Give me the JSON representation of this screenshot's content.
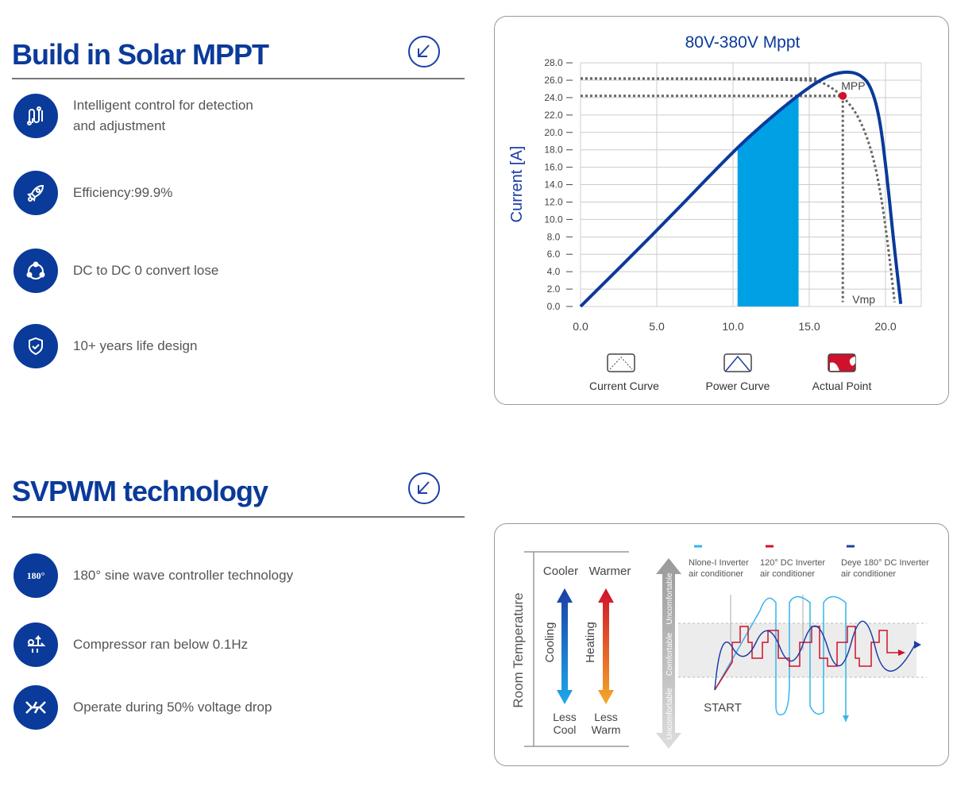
{
  "section1": {
    "title": "Build in Solar MPPT",
    "features": [
      {
        "icon": "circuit-icon",
        "line1": "Intelligent control for detection",
        "line2": "and adjustment"
      },
      {
        "icon": "rocket-icon",
        "line1": "Efficiency:99.9%"
      },
      {
        "icon": "cycle-icon",
        "line1": "DC to DC 0 convert lose"
      },
      {
        "icon": "shield-check-icon",
        "line1": "10+ years life design"
      }
    ]
  },
  "section2": {
    "title": "SVPWM technology",
    "features": [
      {
        "icon": "180-degree-icon",
        "icon_text": "180°",
        "line1": "180° sine wave controller technology"
      },
      {
        "icon": "compressor-icon",
        "line1": "Compressor ran below 0.1Hz"
      },
      {
        "icon": "voltage-drop-icon",
        "line1": "Operate during 50% voltage drop"
      }
    ]
  },
  "colors": {
    "brand": "#0a3a9a",
    "fill": "#00a0e4",
    "red": "#d0112b"
  },
  "chart_data": {
    "type": "line",
    "title": "80V-380V  Mppt",
    "ylabel": "Current [A]",
    "xlabel": "",
    "xlim": [
      0,
      22.3
    ],
    "ylim": [
      0,
      28
    ],
    "xticks": [
      "0.0",
      "5.0",
      "10.0",
      "15.0",
      "20.0"
    ],
    "yticks": [
      "0.0",
      "2.0",
      "4.0",
      "6.0",
      "8.0",
      "10.0",
      "12.0",
      "14.0",
      "16.0",
      "18.0",
      "20.0",
      "22.0",
      "24.0",
      "26.0",
      "28.0"
    ],
    "series": [
      {
        "name": "Power Curve",
        "style": "solid",
        "points": [
          [
            0,
            0
          ],
          [
            5,
            8.7
          ],
          [
            10,
            17.8
          ],
          [
            12,
            21
          ],
          [
            14,
            23.9
          ],
          [
            15.5,
            25.8
          ],
          [
            16.5,
            26.7
          ],
          [
            17.5,
            27
          ],
          [
            18.3,
            26.7
          ],
          [
            19,
            25.5
          ],
          [
            19.6,
            22
          ],
          [
            20.1,
            15
          ],
          [
            20.5,
            8
          ],
          [
            21,
            0.3
          ]
        ]
      },
      {
        "name": "Current Curve",
        "style": "dotted",
        "points": [
          [
            0,
            26.2
          ],
          [
            15,
            26.1
          ],
          [
            16,
            25.7
          ],
          [
            17.2,
            24.2
          ],
          [
            18.2,
            22
          ],
          [
            19,
            18.5
          ],
          [
            19.6,
            14
          ],
          [
            20.1,
            8
          ],
          [
            20.6,
            0.5
          ]
        ]
      }
    ],
    "shaded_x": [
      10.3,
      14.3
    ],
    "mpp": {
      "label": "MPP",
      "x": 17.2,
      "y": 24.2
    },
    "reference_lines": {
      "y": [
        26.2,
        24.2
      ],
      "vmp_label": "Vmp"
    },
    "legend": [
      "Current  Curve",
      "Power Curve",
      "Actual Point"
    ]
  },
  "comfort": {
    "axis_label": "Room Temperature",
    "cooler": "Cooler",
    "warmer": "Warmer",
    "cooling": "Cooling",
    "heating": "Heating",
    "less_cool1": "Less",
    "less_cool2": "Cool",
    "less_warm1": "Less",
    "less_warm2": "Warm",
    "zone_top": "Uncomfortable",
    "zone_mid": "Comfortable",
    "zone_bot": "Uncomfortable",
    "start": "START",
    "legend": [
      {
        "l1": "Nlone-I Inverter",
        "l2": "air conditioner",
        "color": "#36b4ec"
      },
      {
        "l1": "120°  DC Inverter",
        "l2": "air conditioner",
        "color": "#d0112b"
      },
      {
        "l1": "Deye 180°  DC Inverter",
        "l2": "air conditioner",
        "color": "#1b3fa6"
      }
    ]
  }
}
